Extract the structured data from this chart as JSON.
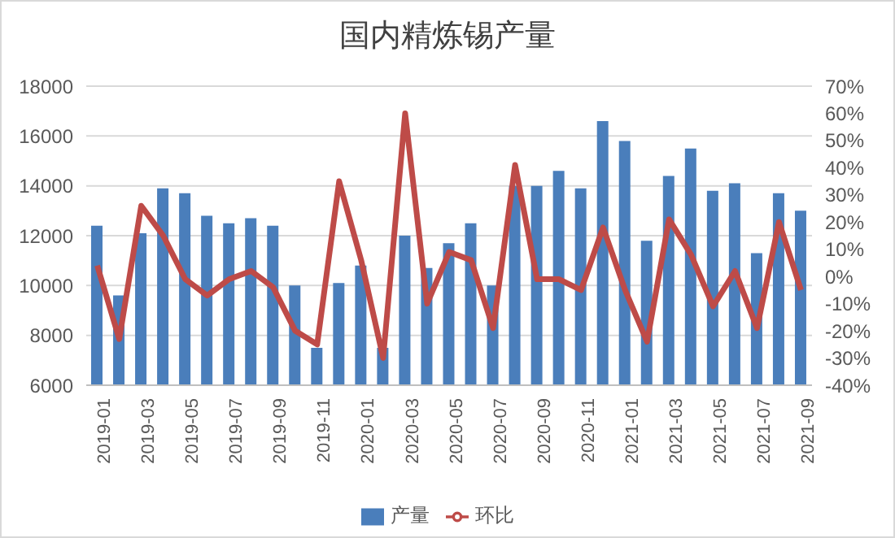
{
  "chart_data": {
    "type": "bar",
    "title": "国内精炼锡产量",
    "categories": [
      "2019-01",
      null,
      "2019-03",
      null,
      "2019-05",
      null,
      "2019-07",
      null,
      "2019-09",
      null,
      "2019-11",
      null,
      "2020-01",
      null,
      "2020-03",
      null,
      "2020-05",
      null,
      "2020-07",
      null,
      "2020-09",
      null,
      "2020-11",
      null,
      "2021-01",
      null,
      "2021-03",
      null,
      "2021-05",
      null,
      "2021-07",
      null,
      "2021-09"
    ],
    "series": [
      {
        "name": "产量",
        "color": "#4a7ebb",
        "values": [
          12400,
          9600,
          12100,
          13900,
          13700,
          12800,
          12500,
          12700,
          12400,
          10000,
          7500,
          10100,
          10800,
          7500,
          12000,
          10700,
          11700,
          12500,
          10000,
          14000,
          14000,
          14600,
          13900,
          16600,
          15800,
          11800,
          14400,
          15500,
          13800,
          14100,
          11300,
          13700,
          13000
        ]
      },
      {
        "name": "环比",
        "type": "line",
        "axis": "y2",
        "color": "#be4b48",
        "values": [
          4,
          -23,
          26,
          15,
          -1,
          -7,
          -1,
          2,
          -4,
          -20,
          -25,
          35,
          6,
          -30,
          60,
          -10,
          9,
          6,
          -19,
          41,
          -1,
          -1,
          -5,
          18,
          -5,
          -24,
          21,
          8,
          -11,
          2,
          -19,
          20,
          -5
        ]
      }
    ],
    "ylim": [
      6000,
      18000
    ],
    "yticks": [
      6000,
      8000,
      10000,
      12000,
      14000,
      16000,
      18000
    ],
    "y2lim": [
      -40,
      70
    ],
    "y2ticks": [
      {
        "value": -40,
        "label": "-40%"
      },
      {
        "value": -30,
        "label": "-30%"
      },
      {
        "value": -20,
        "label": "-20%"
      },
      {
        "value": -10,
        "label": "-10%"
      },
      {
        "value": 0,
        "label": "0%"
      },
      {
        "value": 10,
        "label": "10%"
      },
      {
        "value": 20,
        "label": "20%"
      },
      {
        "value": 30,
        "label": "30%"
      },
      {
        "value": 40,
        "label": "40%"
      },
      {
        "value": 50,
        "label": "50%"
      },
      {
        "value": 60,
        "label": "60%"
      },
      {
        "value": 70,
        "label": "70%"
      }
    ],
    "grid": "y",
    "legend": "bottom",
    "marker": "none"
  }
}
